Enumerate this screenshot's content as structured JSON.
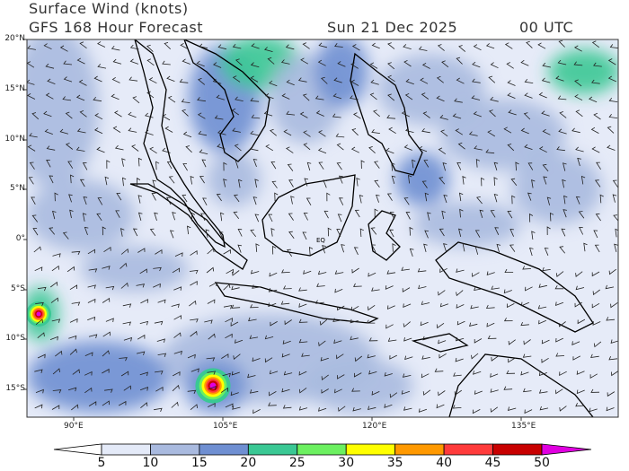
{
  "header": {
    "title": "Surface Wind (knots)",
    "subtitle": "GFS 168 Hour Forecast",
    "date": "Sun 21 Dec 2025",
    "time": "00 UTC"
  },
  "map": {
    "region_lon": [
      85.3,
      144.6
    ],
    "region_lat": [
      -17.8,
      20
    ],
    "equator_label": "EQ",
    "lat_ticks": [
      "20°N",
      "15°N",
      "10°N",
      "5°N",
      "0°",
      "5°S",
      "10°S",
      "15°S"
    ],
    "lon_ticks": [
      "90°E",
      "105°E",
      "120°E",
      "135°E"
    ]
  },
  "colorbar": {
    "labels": [
      "5",
      "10",
      "15",
      "20",
      "25",
      "30",
      "35",
      "40",
      "45",
      "50"
    ],
    "colors": [
      "#e4eaf8",
      "#a9badf",
      "#6f8fd2",
      "#3ac894",
      "#6cf060",
      "#ffff00",
      "#ff9900",
      "#ff3b3b",
      "#c80000"
    ],
    "low_color": "#ffffff",
    "high_color": "#e000e0"
  }
}
